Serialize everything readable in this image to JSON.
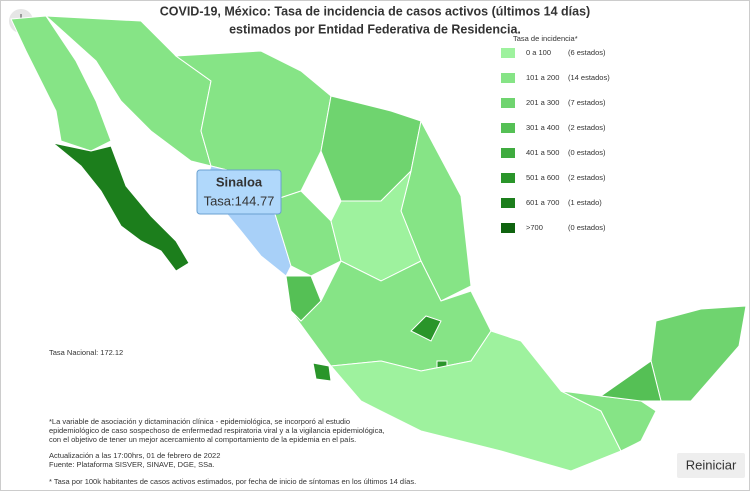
{
  "title": [
    "COVID-19, México: Tasa de incidencia de casos activos (últimos 14 días)",
    "estimados por Entidad Federativa de Residencia."
  ],
  "legend": {
    "title": "Tasa de incidencia*",
    "items": [
      {
        "range": "0 a 100",
        "count": "(6 estados)",
        "color": "#9ef29e"
      },
      {
        "range": "101 a  200",
        "count": "(14 estados)",
        "color": "#86e486"
      },
      {
        "range": "201 a  300",
        "count": "(7 estados)",
        "color": "#6fd46f"
      },
      {
        "range": "301 a  400",
        "count": "(2 estados)",
        "color": "#55c055"
      },
      {
        "range": "401 a 500",
        "count": "(0 estados)",
        "color": "#3fab3f"
      },
      {
        "range": "501 a  600",
        "count": "(2 estados)",
        "color": "#2a952a"
      },
      {
        "range": "601 a  700",
        "count": "(1 estado)",
        "color": "#1c7e1c"
      },
      {
        "range": ">700",
        "count": "(0 estados)",
        "color": "#0f630f"
      }
    ]
  },
  "tooltip": {
    "state": "Sinaloa",
    "label": "Tasa:144.77"
  },
  "national_rate": "Tasa Nacional: 172.12",
  "notes": [
    "*La variable de asociación y dictaminación clínica - epidemiológica, se incorporó al estudio",
    "epidemiológico de caso sospechoso de enfermedad respiratoria viral y a la vigilancia epidemiológica,",
    "con el objetivo de tener un mejor acercamiento al comportamiento de la epidemia en el país."
  ],
  "update": [
    "Actualización a las 17:00hrs, 01 de febrero de 2022",
    "Fuente: Plataforma SISVER, SINAVE, DGE, SSa."
  ],
  "footnote": "* Tasa por 100k habitantes de casos activos estimados, por fecha de inicio de síntomas en los últimos 14 días.",
  "button": "Reiniciar"
}
